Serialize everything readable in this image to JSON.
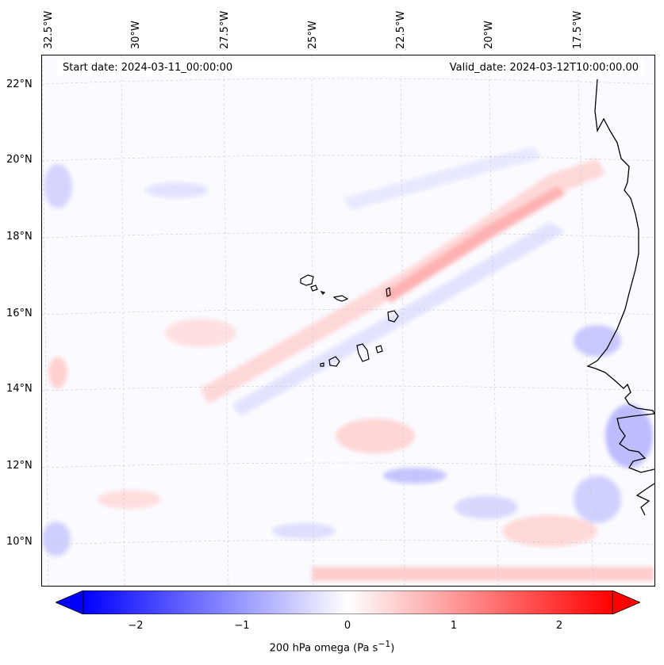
{
  "map": {
    "lat_labels": [
      "22°N",
      "20°N",
      "18°N",
      "16°N",
      "14°N",
      "12°N",
      "10°N"
    ],
    "lon_labels": [
      "32.5°W",
      "30°W",
      "27.5°W",
      "25°W",
      "22.5°W",
      "20°W",
      "17.5°W"
    ],
    "start_date": "Start date: 2024-03-11_00:00:00",
    "valid_date": "Valid_date: 2024-03-12T10:00:00.00",
    "region": "Cape Verde / West African coast",
    "colors": {
      "negative": "#0000ff",
      "zero": "#ffffff",
      "positive": "#ff0000",
      "coast": "#000000",
      "grid": "#b0b0b0"
    }
  },
  "colorbar": {
    "ticks": [
      "−2",
      "−1",
      "0",
      "1",
      "2"
    ],
    "tick_values": [
      -2,
      -1,
      0,
      1,
      2
    ],
    "range": [
      -2.5,
      2.5
    ],
    "label_main": "200 hPa omega (Pa s",
    "label_sup": "−1",
    "label_end": ")"
  }
}
